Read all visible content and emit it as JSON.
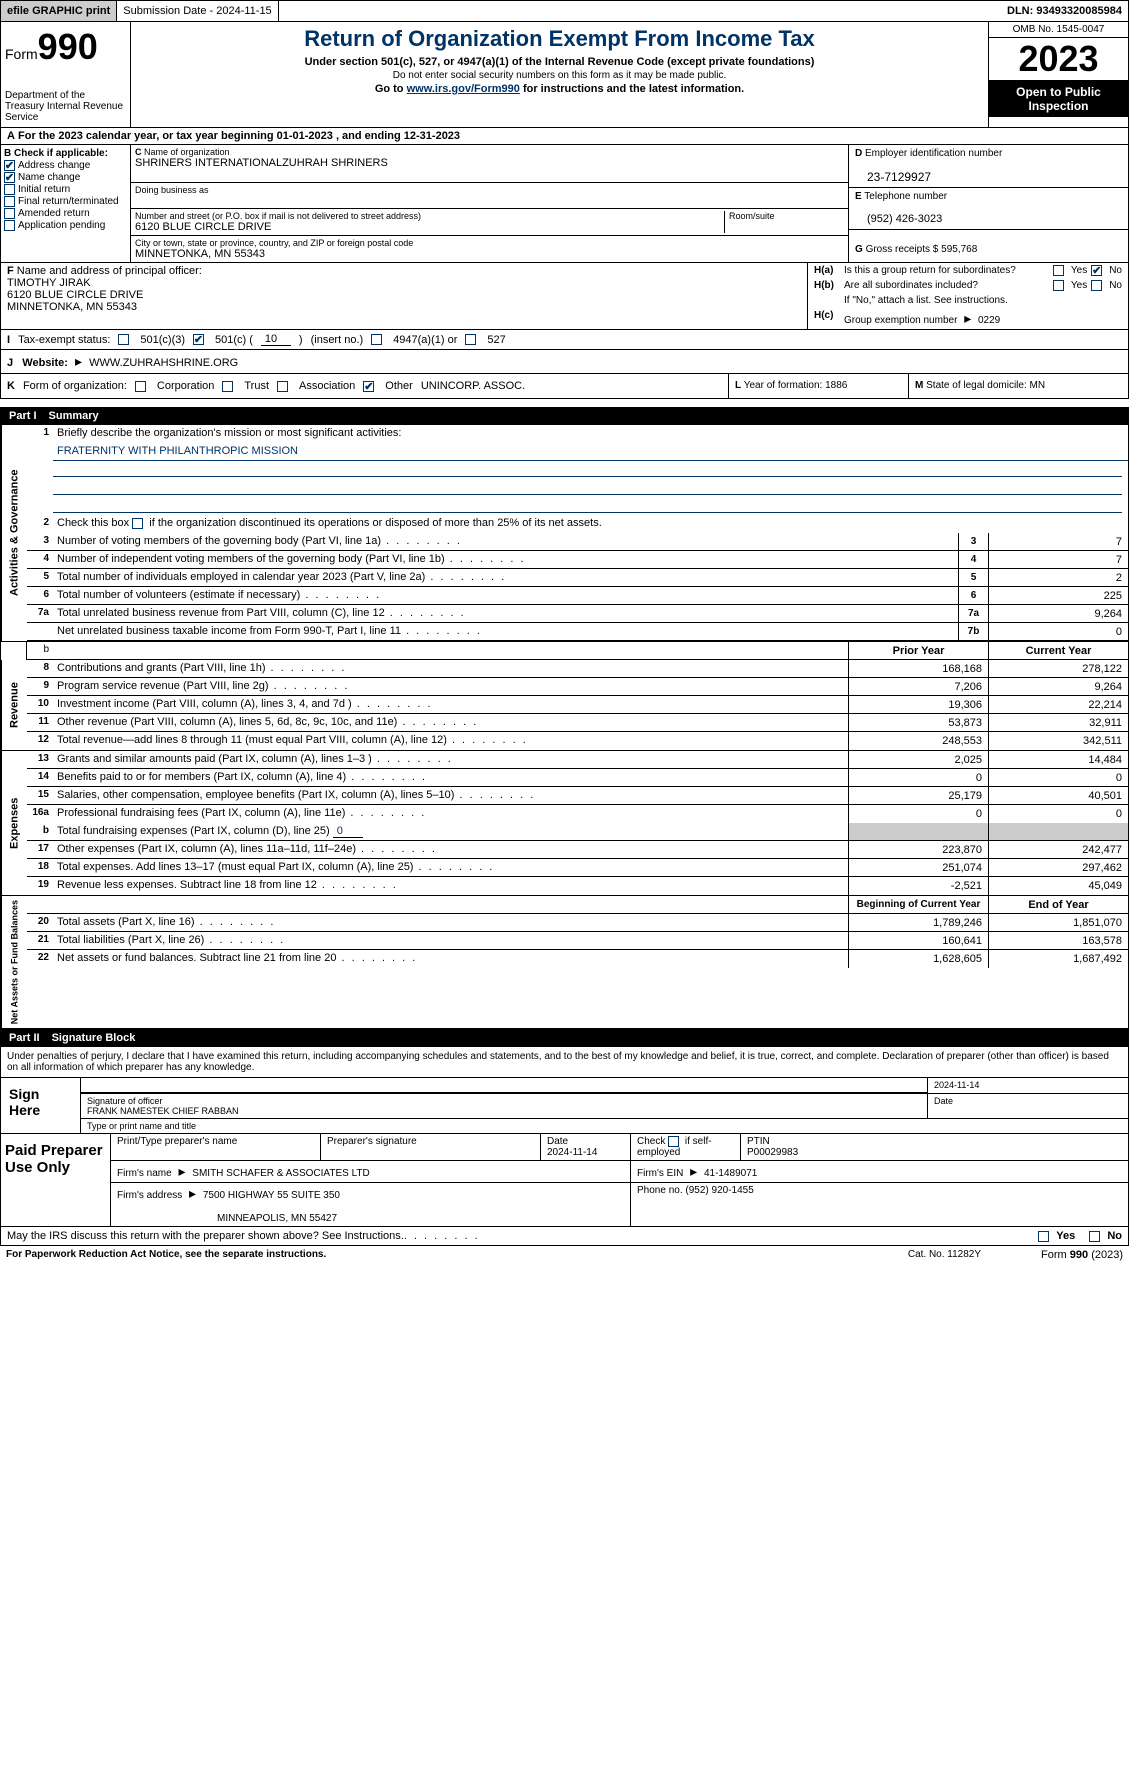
{
  "topbar": {
    "efile": "efile GRAPHIC print",
    "submission": "Submission Date - 2024-11-15",
    "dln": "DLN: 93493320085984"
  },
  "header": {
    "form_prefix": "Form",
    "form_number": "990",
    "dept": "Department of the Treasury Internal Revenue Service",
    "title": "Return of Organization Exempt From Income Tax",
    "sub": "Under section 501(c), 527, or 4947(a)(1) of the Internal Revenue Code (except private foundations)",
    "sub2": "Do not enter social security numbers on this form as it may be made public.",
    "link_pre": "Go to ",
    "link_url": "www.irs.gov/Form990",
    "link_post": " for instructions and the latest information.",
    "omb": "OMB No. 1545-0047",
    "year": "2023",
    "open": "Open to Public Inspection"
  },
  "period": "For the 2023 calendar year, or tax year beginning 01-01-2023    , and ending 12-31-2023",
  "boxB": {
    "label": "Check if applicable:",
    "items": [
      {
        "label": "Address change",
        "checked": true
      },
      {
        "label": "Name change",
        "checked": true
      },
      {
        "label": "Initial return",
        "checked": false
      },
      {
        "label": "Final return/terminated",
        "checked": false
      },
      {
        "label": "Amended return",
        "checked": false
      },
      {
        "label": "Application pending",
        "checked": false
      }
    ]
  },
  "boxC": {
    "name_label": "Name of organization",
    "name": "SHRINERS INTERNATIONALZUHRAH SHRINERS",
    "dba_label": "Doing business as",
    "dba": "",
    "addr_label": "Number and street (or P.O. box if mail is not delivered to street address)",
    "room_label": "Room/suite",
    "addr": "6120 BLUE CIRCLE DRIVE",
    "city_label": "City or town, state or province, country, and ZIP or foreign postal code",
    "city": "MINNETONKA, MN  55343"
  },
  "boxD": {
    "label": "Employer identification number",
    "val": "23-7129927"
  },
  "boxE": {
    "label": "Telephone number",
    "val": "(952) 426-3023"
  },
  "boxG": {
    "label": "Gross receipts $",
    "val": "595,768"
  },
  "boxF": {
    "label": "Name and address of principal officer:",
    "name": "TIMOTHY JIRAK",
    "addr1": "6120 BLUE CIRCLE DRIVE",
    "addr2": "MINNETONKA, MN  55343"
  },
  "boxH": {
    "a_label": "Is this a group return for subordinates?",
    "a_yes": false,
    "a_no": true,
    "b_label": "Are all subordinates included?",
    "b_note": "If \"No,\" attach a list. See instructions.",
    "c_label": "Group exemption number",
    "c_val": "0229"
  },
  "status": {
    "label": "Tax-exempt status:",
    "s501c3": false,
    "s501c": true,
    "s501c_num": "10",
    "s501c_txt": "(insert no.)",
    "s4947": false,
    "s527": false
  },
  "website": {
    "label": "Website:",
    "val": "WWW.ZUHRAHSHRINE.ORG"
  },
  "boxK": {
    "label": "Form of organization:",
    "corp": false,
    "trust": false,
    "assoc": false,
    "other": true,
    "other_txt": "UNINCORP. ASSOC."
  },
  "boxL": {
    "label": "Year of formation:",
    "val": "1886"
  },
  "boxM": {
    "label": "State of legal domicile:",
    "val": "MN"
  },
  "part1": {
    "num": "Part I",
    "title": "Summary"
  },
  "summary": {
    "sec1_label": "Activities & Governance",
    "line1": "Briefly describe the organization's mission or most significant activities:",
    "mission": "FRATERNITY WITH PHILANTHROPIC MISSION",
    "line2": "Check this box      if the organization discontinued its operations or disposed of more than 25% of its net assets.",
    "rows_gov": [
      {
        "n": "3",
        "t": "Number of voting members of the governing body (Part VI, line 1a)",
        "b": "3",
        "v": "7"
      },
      {
        "n": "4",
        "t": "Number of independent voting members of the governing body (Part VI, line 1b)",
        "b": "4",
        "v": "7"
      },
      {
        "n": "5",
        "t": "Total number of individuals employed in calendar year 2023 (Part V, line 2a)",
        "b": "5",
        "v": "2"
      },
      {
        "n": "6",
        "t": "Total number of volunteers (estimate if necessary)",
        "b": "6",
        "v": "225"
      },
      {
        "n": "7a",
        "t": "Total unrelated business revenue from Part VIII, column (C), line 12",
        "b": "7a",
        "v": "9,264"
      },
      {
        "n": "",
        "t": "Net unrelated business taxable income from Form 990-T, Part I, line 11",
        "b": "7b",
        "v": "0"
      }
    ],
    "col_b": "b",
    "prior": "Prior Year",
    "current": "Current Year",
    "sec2_label": "Revenue",
    "rows_rev": [
      {
        "n": "8",
        "t": "Contributions and grants (Part VIII, line 1h)",
        "p": "168,168",
        "c": "278,122"
      },
      {
        "n": "9",
        "t": "Program service revenue (Part VIII, line 2g)",
        "p": "7,206",
        "c": "9,264"
      },
      {
        "n": "10",
        "t": "Investment income (Part VIII, column (A), lines 3, 4, and 7d )",
        "p": "19,306",
        "c": "22,214"
      },
      {
        "n": "11",
        "t": "Other revenue (Part VIII, column (A), lines 5, 6d, 8c, 9c, 10c, and 11e)",
        "p": "53,873",
        "c": "32,911"
      },
      {
        "n": "12",
        "t": "Total revenue—add lines 8 through 11 (must equal Part VIII, column (A), line 12)",
        "p": "248,553",
        "c": "342,511"
      }
    ],
    "sec3_label": "Expenses",
    "rows_exp": [
      {
        "n": "13",
        "t": "Grants and similar amounts paid (Part IX, column (A), lines 1–3 )",
        "p": "2,025",
        "c": "14,484"
      },
      {
        "n": "14",
        "t": "Benefits paid to or for members (Part IX, column (A), line 4)",
        "p": "0",
        "c": "0"
      },
      {
        "n": "15",
        "t": "Salaries, other compensation, employee benefits (Part IX, column (A), lines 5–10)",
        "p": "25,179",
        "c": "40,501"
      },
      {
        "n": "16a",
        "t": "Professional fundraising fees (Part IX, column (A), line 11e)",
        "p": "0",
        "c": "0"
      }
    ],
    "line_b": {
      "n": "b",
      "t": "Total fundraising expenses (Part IX, column (D), line 25)",
      "v": "0"
    },
    "rows_exp2": [
      {
        "n": "17",
        "t": "Other expenses (Part IX, column (A), lines 11a–11d, 11f–24e)",
        "p": "223,870",
        "c": "242,477"
      },
      {
        "n": "18",
        "t": "Total expenses. Add lines 13–17 (must equal Part IX, column (A), line 25)",
        "p": "251,074",
        "c": "297,462"
      },
      {
        "n": "19",
        "t": "Revenue less expenses. Subtract line 18 from line 12",
        "p": "-2,521",
        "c": "45,049"
      }
    ],
    "sec4_label": "Net Assets or Fund Balances",
    "begin": "Beginning of Current Year",
    "end": "End of Year",
    "rows_net": [
      {
        "n": "20",
        "t": "Total assets (Part X, line 16)",
        "p": "1,789,246",
        "c": "1,851,070"
      },
      {
        "n": "21",
        "t": "Total liabilities (Part X, line 26)",
        "p": "160,641",
        "c": "163,578"
      },
      {
        "n": "22",
        "t": "Net assets or fund balances. Subtract line 21 from line 20",
        "p": "1,628,605",
        "c": "1,687,492"
      }
    ]
  },
  "part2": {
    "num": "Part II",
    "title": "Signature Block"
  },
  "sig": {
    "decl": "Under penalties of perjury, I declare that I have examined this return, including accompanying schedules and statements, and to the best of my knowledge and belief, it is true, correct, and complete. Declaration of preparer (other than officer) is based on all information of which preparer has any knowledge.",
    "sign_here": "Sign Here",
    "date": "2024-11-14",
    "sig_label": "Signature of officer",
    "officer": "FRANK NAMESTEK CHIEF RABBAN",
    "name_label": "Type or print name and title",
    "date_label": "Date"
  },
  "paid": {
    "title": "Paid Preparer Use Only",
    "h1": "Print/Type preparer's name",
    "h2": "Preparer's signature",
    "h3": "Date",
    "h3v": "2024-11-14",
    "h4": "Check       if self-employed",
    "h5": "PTIN",
    "h5v": "P00029983",
    "firm_label": "Firm's name",
    "firm": "SMITH SCHAFER & ASSOCIATES LTD",
    "ein_label": "Firm's EIN",
    "ein": "41-1489071",
    "addr_label": "Firm's address",
    "addr1": "7500 HIGHWAY 55 SUITE 350",
    "addr2": "MINNEAPOLIS, MN  55427",
    "phone_label": "Phone no.",
    "phone": "(952) 920-1455"
  },
  "footer": {
    "discuss": "May the IRS discuss this return with the preparer shown above? See Instructions.",
    "paperwork": "For Paperwork Reduction Act Notice, see the separate instructions.",
    "cat": "Cat. No. 11282Y",
    "form": "Form 990 (2023)"
  },
  "labels": {
    "yes": "Yes",
    "no": "No",
    "B": "B",
    "C": "C",
    "D": "D",
    "E": "E",
    "F": "F",
    "G": "G",
    "I": "I",
    "J": "J",
    "K": "K",
    "L": "L",
    "M": "M",
    "Ha": "H(a)",
    "Hb": "H(b)",
    "Hc": "H(c)",
    "s501c3": "501(c)(3)",
    "s501c": "501(c) (",
    "close": ")",
    "s4947": "4947(a)(1) or",
    "s527": "527",
    "corp": "Corporation",
    "trust": "Trust",
    "assoc": "Association",
    "other": "Other",
    "arrow": "▸"
  }
}
